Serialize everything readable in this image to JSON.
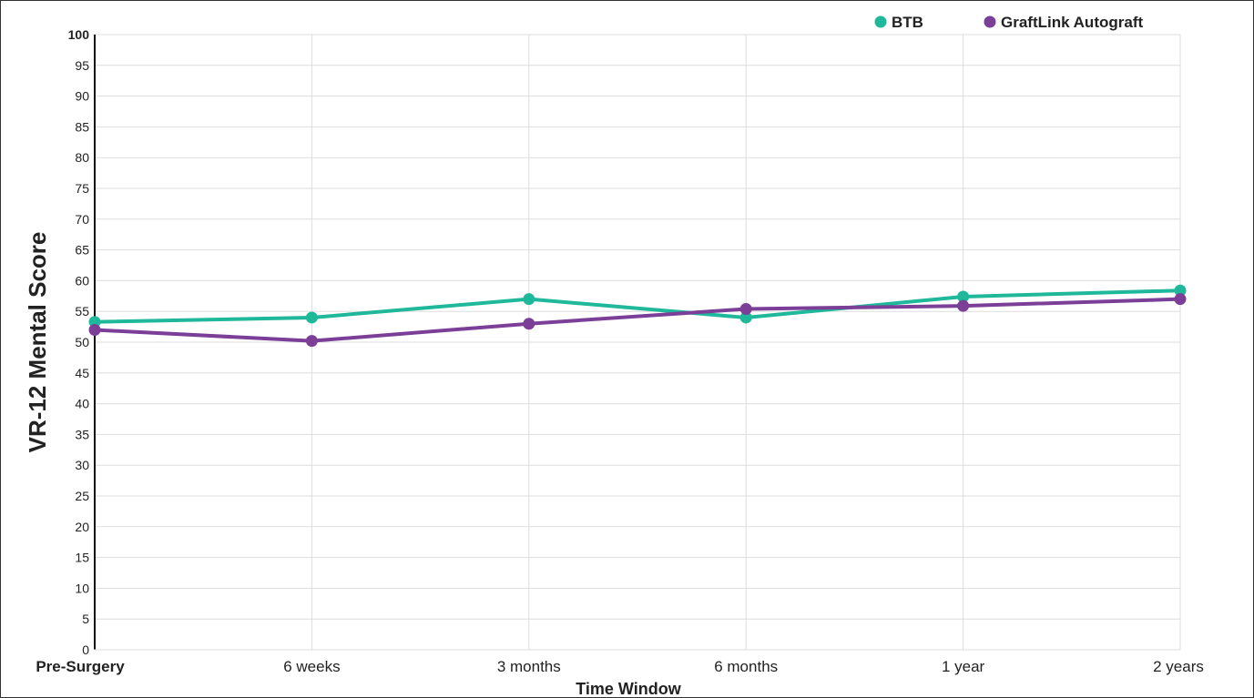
{
  "chart_data": {
    "type": "line",
    "title": "",
    "xlabel": "Time Window",
    "ylabel": "VR-12 Mental Score",
    "categories": [
      "Pre-Surgery",
      "6 weeks",
      "3 months",
      "6 months",
      "1 year",
      "2 years"
    ],
    "ylim": [
      0,
      100
    ],
    "yticks": [
      0,
      5,
      10,
      15,
      20,
      25,
      30,
      35,
      40,
      45,
      50,
      55,
      60,
      65,
      70,
      75,
      80,
      85,
      90,
      95,
      100
    ],
    "grid": true,
    "legend_position": "top-right",
    "series": [
      {
        "name": "BTB",
        "color": "#1fb89a",
        "values": [
          53.3,
          54.0,
          57.0,
          54.0,
          57.4,
          58.4
        ]
      },
      {
        "name": "GraftLink Autograft",
        "color": "#7b3f98",
        "values": [
          52.0,
          50.2,
          53.0,
          55.4,
          55.9,
          57.0
        ]
      }
    ]
  }
}
